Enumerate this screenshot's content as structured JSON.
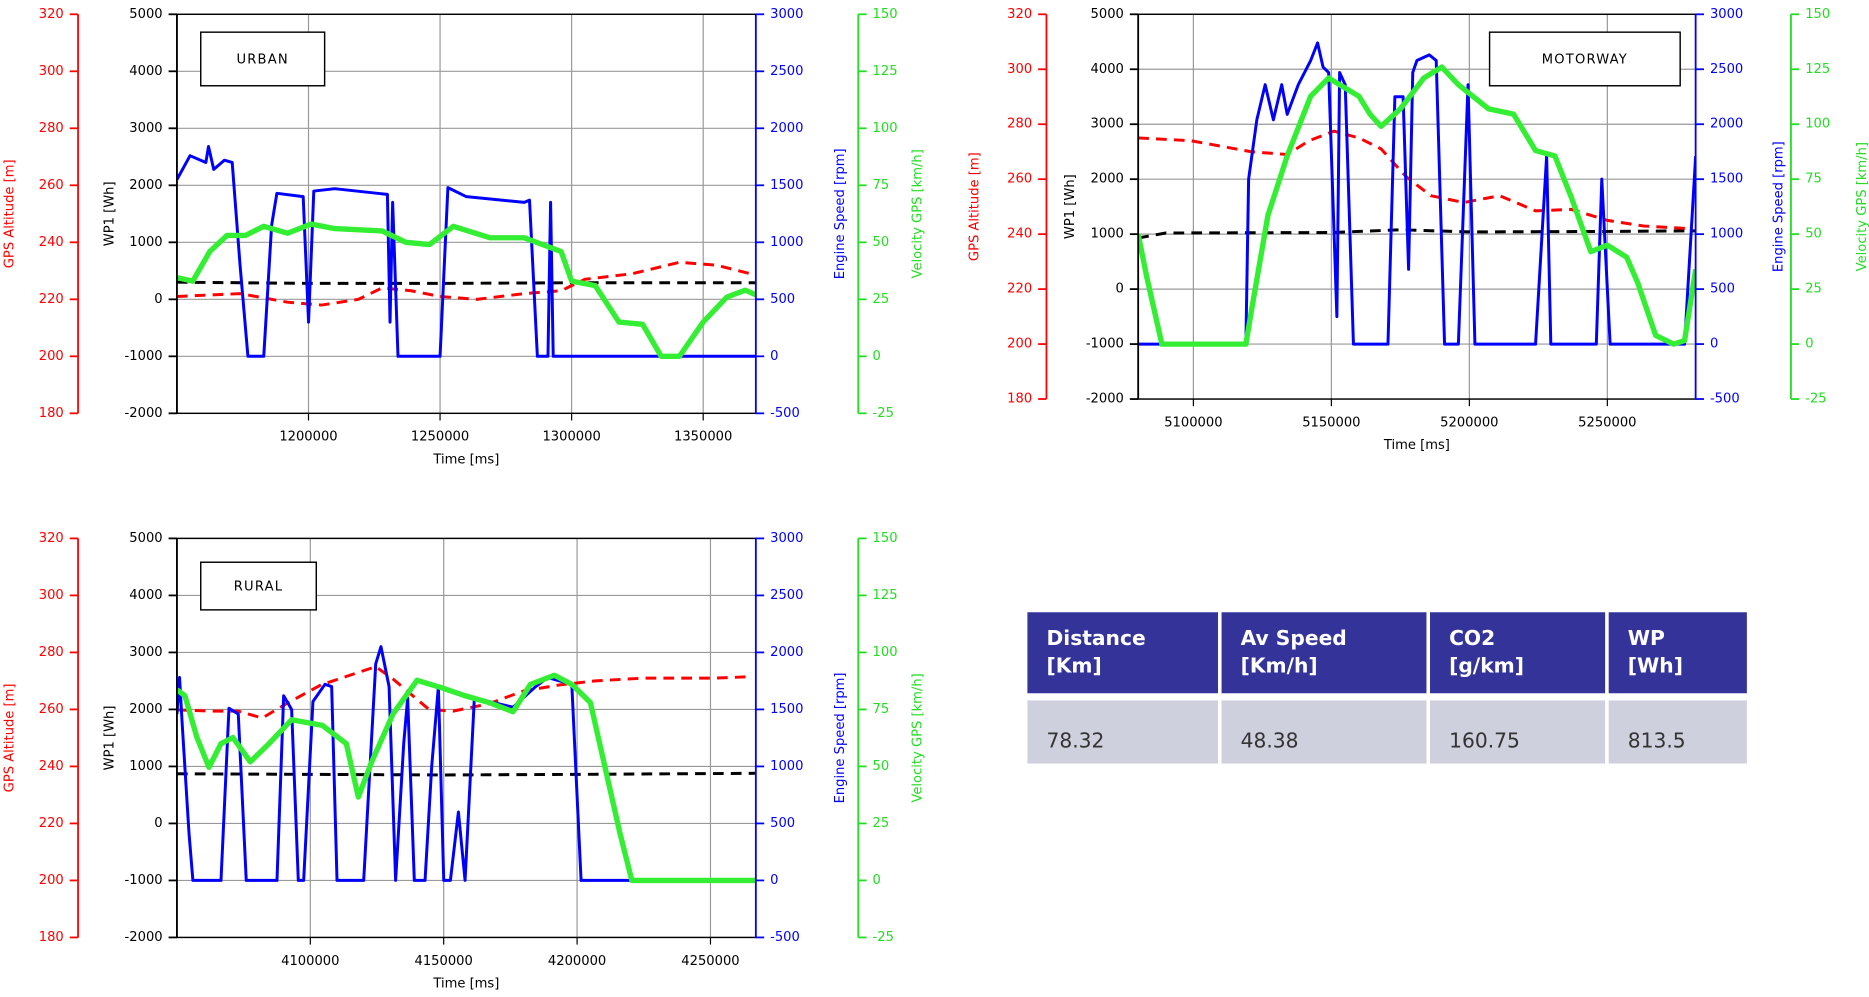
{
  "chart_data": [
    {
      "type": "line",
      "title": "URBAN",
      "xlabel": "Time [ms]",
      "grid": true,
      "xlim": [
        1150000,
        1370000
      ],
      "xticks": [
        1200000,
        1250000,
        1300000,
        1350000
      ],
      "axes": [
        {
          "label": "GPS Altitude [m]",
          "color": "#ff0000",
          "lim": [
            180,
            320
          ],
          "ticks": [
            180,
            200,
            220,
            240,
            260,
            280,
            300,
            320
          ]
        },
        {
          "label": "WP1 [Wh]",
          "color": "#000000",
          "lim": [
            -2000,
            5000
          ],
          "ticks": [
            -2000,
            -1000,
            0,
            1000,
            2000,
            3000,
            4000,
            5000
          ]
        },
        {
          "label": "Engine Speed [rpm]",
          "color": "#0000ff",
          "lim": [
            -500,
            3000
          ],
          "ticks": [
            -500,
            0,
            500,
            1000,
            1500,
            2000,
            2500,
            3000
          ]
        },
        {
          "label": "Velocity GPS [km/h]",
          "color": "#22dd22",
          "lim": [
            -25,
            150
          ],
          "ticks": [
            -25,
            0,
            25,
            50,
            75,
            100,
            125,
            150
          ]
        }
      ],
      "series": [
        {
          "axis": 1,
          "color": "#000000",
          "dash": true,
          "x": [
            1150000,
            1200000,
            1250000,
            1300000,
            1370000
          ],
          "values": [
            300,
            280,
            280,
            290,
            290
          ]
        },
        {
          "axis": 0,
          "color": "#ff0000",
          "dash": true,
          "x": [
            1150000,
            1174000,
            1192000,
            1205000,
            1219000,
            1228000,
            1239000,
            1250000,
            1264000,
            1282000,
            1296000,
            1305000,
            1323000,
            1341000,
            1355000,
            1368000
          ],
          "values": [
            221,
            222,
            219,
            218,
            220,
            224,
            223,
            221,
            220,
            222,
            223,
            227,
            229,
            233,
            232,
            229
          ]
        },
        {
          "axis": 2,
          "color": "#0000ff",
          "dash": false,
          "x": [
            1150000,
            1155000,
            1161000,
            1162000,
            1164000,
            1168000,
            1171000,
            1174000,
            1177000,
            1183000,
            1186000,
            1188000,
            1198000,
            1200000,
            1202000,
            1210000,
            1230000,
            1231000,
            1232000,
            1234000,
            1250000,
            1253000,
            1260000,
            1282000,
            1284000,
            1287000,
            1291000,
            1292000,
            1293000,
            1370000
          ],
          "values": [
            1550,
            1760,
            1700,
            1840,
            1640,
            1720,
            1700,
            800,
            0,
            0,
            1150,
            1430,
            1400,
            300,
            1450,
            1470,
            1420,
            300,
            1350,
            0,
            0,
            1480,
            1400,
            1350,
            1370,
            0,
            0,
            1350,
            0,
            0
          ]
        },
        {
          "axis": 3,
          "color": "#33ee33",
          "dash": false,
          "x": [
            1150000,
            1156000,
            1162500,
            1169000,
            1176000,
            1183000,
            1192000,
            1201000,
            1210000,
            1228000,
            1237000,
            1246000,
            1255000,
            1269000,
            1282000,
            1296000,
            1300000,
            1309000,
            1318000,
            1327000,
            1334000,
            1341000,
            1350000,
            1359000,
            1366000,
            1370000
          ],
          "values": [
            34.5,
            33,
            46,
            53,
            53,
            57,
            54,
            58,
            56,
            55,
            50,
            49,
            57,
            52,
            52,
            46,
            33,
            31,
            15,
            14,
            0,
            0,
            15,
            26,
            29,
            27
          ]
        }
      ]
    },
    {
      "type": "line",
      "title": "MOTORWAY",
      "xlabel": "Time [ms]",
      "grid": true,
      "xlim": [
        5080000,
        5282000
      ],
      "xticks": [
        5100000,
        5150000,
        5200000,
        5250000
      ],
      "axes": [
        {
          "label": "GPS Altitude [m]",
          "color": "#ff0000",
          "lim": [
            180,
            320
          ],
          "ticks": [
            180,
            200,
            220,
            240,
            260,
            280,
            300,
            320
          ]
        },
        {
          "label": "WP1 [Wh]",
          "color": "#000000",
          "lim": [
            -2000,
            5000
          ],
          "ticks": [
            -2000,
            -1000,
            0,
            1000,
            2000,
            3000,
            4000,
            5000
          ]
        },
        {
          "label": "Engine Speed [rpm]",
          "color": "#0000ff",
          "lim": [
            -500,
            3000
          ],
          "ticks": [
            -500,
            0,
            500,
            1000,
            1500,
            2000,
            2500,
            3000
          ]
        },
        {
          "label": "Velocity GPS [km/h]",
          "color": "#22dd22",
          "lim": [
            -25,
            150
          ],
          "ticks": [
            -25,
            0,
            25,
            50,
            75,
            100,
            125,
            150
          ]
        }
      ],
      "series": [
        {
          "axis": 1,
          "color": "#000000",
          "dash": true,
          "x": [
            5080000,
            5090000,
            5150000,
            5175000,
            5200000,
            5250000,
            5282000
          ],
          "values": [
            930,
            1020,
            1030,
            1080,
            1040,
            1050,
            1060
          ]
        },
        {
          "axis": 0,
          "color": "#ff0000",
          "dash": true,
          "x": [
            5080000,
            5099000,
            5121000,
            5134000,
            5142000,
            5151000,
            5160000,
            5168000,
            5177000,
            5186000,
            5198000,
            5211000,
            5224000,
            5237000,
            5250000,
            5263000,
            5280000
          ],
          "values": [
            275,
            274,
            270,
            269,
            274,
            277.5,
            275,
            271,
            261,
            254,
            251.5,
            254,
            248.5,
            249,
            245,
            243,
            242
          ]
        },
        {
          "axis": 2,
          "color": "#0000ff",
          "dash": false,
          "x": [
            5080000,
            5119000,
            5120000,
            5123000,
            5126000,
            5129000,
            5132000,
            5134000,
            5138000,
            5142500,
            5145000,
            5147000,
            5149000,
            5152000,
            5153000,
            5155000,
            5158000,
            5170500,
            5173000,
            5176000,
            5178000,
            5179500,
            5181000,
            5185500,
            5188000,
            5191000,
            5196000,
            5199500,
            5202000,
            5224000,
            5228000,
            5229500,
            5246000,
            5248000,
            5251000,
            5278000,
            5282000
          ],
          "values": [
            0,
            0,
            1500,
            2040,
            2360,
            2040,
            2360,
            2090,
            2360,
            2580,
            2740,
            2520,
            2470,
            250,
            2470,
            2360,
            0,
            0,
            2250,
            2250,
            680,
            2470,
            2580,
            2630,
            2580,
            0,
            0,
            2360,
            0,
            0,
            1710,
            0,
            0,
            1500,
            0,
            0,
            1710
          ]
        },
        {
          "axis": 3,
          "color": "#33ee33",
          "dash": false,
          "x": [
            5080000,
            5083000,
            5088600,
            5119000,
            5121000,
            5127000,
            5134000,
            5142500,
            5149000,
            5153000,
            5160000,
            5164000,
            5168000,
            5175000,
            5183500,
            5190000,
            5196000,
            5207000,
            5216000,
            5224000,
            5231000,
            5237000,
            5244000,
            5250000,
            5257000,
            5261000,
            5267500,
            5274000,
            5278000,
            5282000
          ],
          "values": [
            50,
            31,
            0,
            0,
            15,
            58.5,
            85.6,
            112.7,
            121,
            118,
            112.7,
            104.6,
            99,
            107,
            121,
            126,
            118,
            107,
            104.6,
            88,
            85.6,
            66.6,
            42,
            45,
            39.5,
            28,
            4,
            0,
            1.6,
            34
          ]
        }
      ]
    },
    {
      "type": "line",
      "title": "RURAL",
      "xlabel": "Time [ms]",
      "grid": true,
      "xlim": [
        4050000,
        4267000
      ],
      "xticks": [
        4100000,
        4150000,
        4200000,
        4250000
      ],
      "axes": [
        {
          "label": "GPS Altitude [m]",
          "color": "#ff0000",
          "lim": [
            180,
            320
          ],
          "ticks": [
            180,
            200,
            220,
            240,
            260,
            280,
            300,
            320
          ]
        },
        {
          "label": "WP1 [Wh]",
          "color": "#000000",
          "lim": [
            -2000,
            5000
          ],
          "ticks": [
            -2000,
            -1000,
            0,
            1000,
            2000,
            3000,
            4000,
            5000
          ]
        },
        {
          "label": "Engine Speed [rpm]",
          "color": "#0000ff",
          "lim": [
            -500,
            3000
          ],
          "ticks": [
            -500,
            0,
            500,
            1000,
            1500,
            2000,
            2500,
            3000
          ]
        },
        {
          "label": "Velocity GPS [km/h]",
          "color": "#22dd22",
          "lim": [
            -25,
            150
          ],
          "ticks": [
            -25,
            0,
            25,
            50,
            75,
            100,
            125,
            150
          ]
        }
      ],
      "series": [
        {
          "axis": 1,
          "color": "#000000",
          "dash": true,
          "x": [
            4050000,
            4100000,
            4150000,
            4200000,
            4267000
          ],
          "values": [
            870,
            860,
            850,
            860,
            880
          ]
        },
        {
          "axis": 0,
          "color": "#ff0000",
          "dash": true,
          "x": [
            4050000,
            4064000,
            4073000,
            4082000,
            4091000,
            4104000,
            4118000,
            4124500,
            4131000,
            4144500,
            4153500,
            4167000,
            4180000,
            4193500,
            4207000,
            4225000,
            4251500,
            4265000
          ],
          "values": [
            259.8,
            259.4,
            259.4,
            257,
            262,
            268.6,
            273,
            275,
            270.7,
            260,
            259.4,
            262,
            266.5,
            268.6,
            270,
            271,
            271,
            271.5
          ]
        },
        {
          "axis": 2,
          "color": "#0000ff",
          "dash": false,
          "x": [
            4050000,
            4051000,
            4052000,
            4054500,
            4056000,
            4066500,
            4069500,
            4073000,
            4076000,
            4087500,
            4090000,
            4093000,
            4095500,
            4097500,
            4101000,
            4105500,
            4108000,
            4110000,
            4120000,
            4124500,
            4126500,
            4129500,
            4132000,
            4135000,
            4136500,
            4139000,
            4143000,
            4145500,
            4148000,
            4150000,
            4152500,
            4155500,
            4158000,
            4161500,
            4167000,
            4176000,
            4184500,
            4189000,
            4198000,
            4201500,
            4267000
          ],
          "values": [
            1460,
            1780,
            1360,
            420,
            0,
            0,
            1510,
            1460,
            0,
            0,
            1620,
            1500,
            0,
            0,
            1570,
            1720,
            1700,
            0,
            0,
            1900,
            2050,
            1700,
            0,
            1200,
            1600,
            0,
            0,
            1000,
            1700,
            0,
            0,
            600,
            0,
            1600,
            1570,
            1520,
            1700,
            1780,
            1720,
            0,
            0
          ]
        },
        {
          "axis": 3,
          "color": "#33ee33",
          "dash": false,
          "x": [
            4050000,
            4053000,
            4057500,
            4062000,
            4066500,
            4071000,
            4077500,
            4084500,
            4093000,
            4104500,
            4113500,
            4118000,
            4123000,
            4131000,
            4140000,
            4149000,
            4158000,
            4167000,
            4176000,
            4182500,
            4191500,
            4198000,
            4205000,
            4216000,
            4220500,
            4267000
          ],
          "values": [
            83.6,
            81,
            62.7,
            49.6,
            60,
            62.7,
            52,
            60,
            70.5,
            68,
            60,
            36.6,
            52,
            73,
            87.8,
            84.6,
            81,
            78,
            74,
            86,
            90,
            86,
            78,
            21,
            0,
            0
          ]
        }
      ]
    }
  ],
  "table": {
    "header": [
      [
        "Distance",
        "[Km]"
      ],
      [
        "Av Speed",
        "[Km/h]"
      ],
      [
        "CO2",
        "[g/km]"
      ],
      [
        "WP",
        "[Wh]"
      ]
    ],
    "rows": [
      [
        78.32,
        48.38,
        160.75,
        813.5
      ]
    ]
  }
}
